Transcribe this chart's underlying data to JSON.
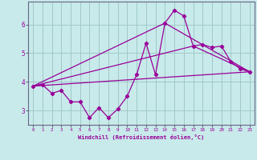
{
  "xlabel": "Windchill (Refroidissement éolien,°C)",
  "background_color": "#c8eaea",
  "grid_color": "#a0c8c8",
  "line_color": "#990099",
  "spine_color": "#666688",
  "xlim": [
    -0.5,
    23.5
  ],
  "ylim": [
    2.5,
    6.8
  ],
  "yticks": [
    3,
    4,
    5,
    6
  ],
  "xticks": [
    0,
    1,
    2,
    3,
    4,
    5,
    6,
    7,
    8,
    9,
    10,
    11,
    12,
    13,
    14,
    15,
    16,
    17,
    18,
    19,
    20,
    21,
    22,
    23
  ],
  "series1_x": [
    0,
    1,
    2,
    3,
    4,
    5,
    6,
    7,
    8,
    9,
    10,
    11,
    12,
    13,
    14,
    15,
    16,
    17,
    18,
    19,
    20,
    21,
    22,
    23
  ],
  "series1_y": [
    3.85,
    3.9,
    3.6,
    3.7,
    3.3,
    3.3,
    2.75,
    3.1,
    2.75,
    3.05,
    3.5,
    4.25,
    5.35,
    4.25,
    6.05,
    6.5,
    6.3,
    5.25,
    5.3,
    5.2,
    5.25,
    4.7,
    4.45,
    4.35
  ],
  "series2_x": [
    0,
    14,
    23
  ],
  "series2_y": [
    3.85,
    6.05,
    4.35
  ],
  "series3_x": [
    0,
    17,
    23
  ],
  "series3_y": [
    3.85,
    5.25,
    4.35
  ],
  "series4_x": [
    0,
    23
  ],
  "series4_y": [
    3.85,
    4.35
  ]
}
